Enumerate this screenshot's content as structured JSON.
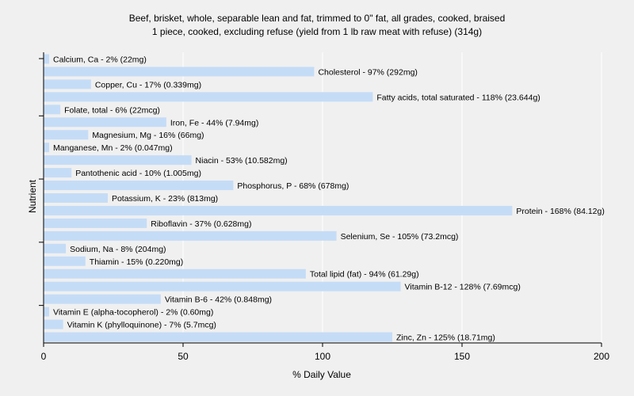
{
  "chart_data": {
    "type": "bar",
    "orientation": "horizontal",
    "title": [
      "Beef, brisket, whole, separable lean and fat, trimmed to 0\" fat, all grades, cooked, braised",
      "1 piece, cooked, excluding refuse (yield from 1 lb raw meat with refuse) (314g)"
    ],
    "xlabel": "% Daily Value",
    "ylabel": "Nutrient",
    "xlim": [
      0,
      200
    ],
    "xticks": [
      0,
      50,
      100,
      150,
      200
    ],
    "grid": true,
    "bar_color": "#c5dcf7",
    "categories": [
      "Calcium, Ca",
      "Cholesterol",
      "Copper, Cu",
      "Fatty acids, total saturated",
      "Folate, total",
      "Iron, Fe",
      "Magnesium, Mg",
      "Manganese, Mn",
      "Niacin",
      "Pantothenic acid",
      "Phosphorus, P",
      "Potassium, K",
      "Protein",
      "Riboflavin",
      "Selenium, Se",
      "Sodium, Na",
      "Thiamin",
      "Total lipid (fat)",
      "Vitamin B-12",
      "Vitamin B-6",
      "Vitamin E (alpha-tocopherol)",
      "Vitamin K (phylloquinone)",
      "Zinc, Zn"
    ],
    "values": [
      2,
      97,
      17,
      118,
      6,
      44,
      16,
      2,
      53,
      10,
      68,
      23,
      168,
      37,
      105,
      8,
      15,
      94,
      128,
      42,
      2,
      7,
      125
    ],
    "labels": [
      "Calcium, Ca - 2% (22mg)",
      "Cholesterol - 97% (292mg)",
      "Copper, Cu - 17% (0.339mg)",
      "Fatty acids, total saturated - 118% (23.644g)",
      "Folate, total - 6% (22mcg)",
      "Iron, Fe - 44% (7.94mg)",
      "Magnesium, Mg - 16% (66mg)",
      "Manganese, Mn - 2% (0.047mg)",
      "Niacin - 53% (10.582mg)",
      "Pantothenic acid - 10% (1.005mg)",
      "Phosphorus, P - 68% (678mg)",
      "Potassium, K - 23% (813mg)",
      "Protein - 168% (84.12g)",
      "Riboflavin - 37% (0.628mg)",
      "Selenium, Se - 105% (73.2mcg)",
      "Sodium, Na - 8% (204mg)",
      "Thiamin - 15% (0.220mg)",
      "Total lipid (fat) - 94% (61.29g)",
      "Vitamin B-12 - 128% (7.69mcg)",
      "Vitamin B-6 - 42% (0.848mg)",
      "Vitamin E (alpha-tocopherol) - 2% (0.60mg)",
      "Vitamin K (phylloquinone) - 7% (5.7mcg)",
      "Zinc, Zn - 125% (18.71mg)"
    ]
  }
}
